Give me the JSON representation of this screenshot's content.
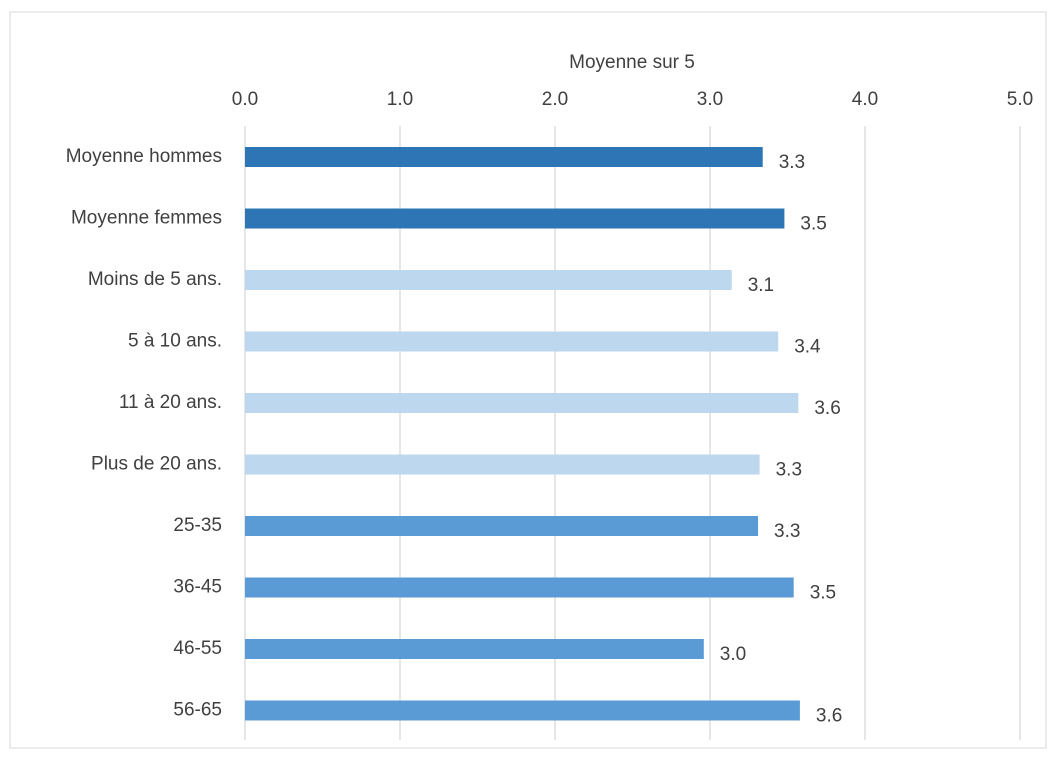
{
  "chart_data": {
    "type": "barh",
    "xlabel": "Moyenne sur 5",
    "categories": [
      "Moyenne hommes",
      "Moyenne femmes",
      "Moins de 5 ans.",
      "5 à 10 ans.",
      "11 à 20 ans.",
      "Plus de 20 ans.",
      "25-35",
      "36-45",
      "46-55",
      "56-65"
    ],
    "values": [
      3.34,
      3.48,
      3.14,
      3.44,
      3.57,
      3.32,
      3.31,
      3.54,
      2.96,
      3.58
    ],
    "value_labels": [
      "3.3",
      "3.5",
      "3.1",
      "3.4",
      "3.6",
      "3.3",
      "3.3",
      "3.5",
      "3.0",
      "3.6"
    ],
    "colors": [
      "#2e75b6",
      "#2e75b6",
      "#bdd7ee",
      "#bdd7ee",
      "#bdd7ee",
      "#bdd7ee",
      "#5b9bd5",
      "#5b9bd5",
      "#5b9bd5",
      "#5b9bd5"
    ],
    "xlim": [
      0,
      5
    ],
    "xticks": [
      {
        "value": 0,
        "label": "0.0"
      },
      {
        "value": 1,
        "label": "1.0"
      },
      {
        "value": 2,
        "label": "2.0"
      },
      {
        "value": 3,
        "label": "3.0"
      },
      {
        "value": 4,
        "label": "4.0"
      },
      {
        "value": 5,
        "label": "5.0"
      }
    ],
    "grid": true
  }
}
